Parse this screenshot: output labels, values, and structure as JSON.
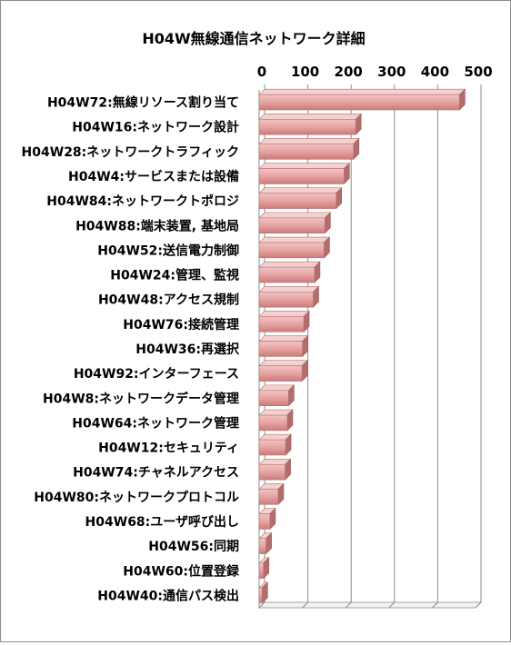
{
  "chart_data": {
    "type": "bar",
    "orientation": "horizontal",
    "title": "H04W無線通信ネットワーク詳細",
    "categories": [
      "H04W72:無線リソース割り当て",
      "H04W16:ネットワーク設計",
      "H04W28:ネットワークトラフィック",
      "H04W4:サービスまたは設備",
      "H04W84:ネットワークトポロジ",
      "H04W88:端末装置, 基地局",
      "H04W52:送信電力制御",
      "H04W24:管理、監視",
      "H04W48:アクセス規制",
      "H04W76:接続管理",
      "H04W36:再選択",
      "H04W92:インターフェース",
      "H04W8:ネットワークデータ管理",
      "H04W64:ネットワーク管理",
      "H04W12:セキュリティ",
      "H04W74:チャネルアクセス",
      "H04W80:ネットワークプロトコル",
      "H04W68:ユーザ呼び出し",
      "H04W56:同期",
      "H04W60:位置登録",
      "H04W40:通信パス検出"
    ],
    "values": [
      463,
      223,
      218,
      196,
      178,
      152,
      150,
      128,
      125,
      103,
      100,
      99,
      68,
      65,
      61,
      60,
      44,
      25,
      16,
      10,
      7
    ],
    "xlim": [
      0,
      500
    ],
    "xticks": [
      "0",
      "100",
      "200",
      "300",
      "400",
      "500"
    ],
    "xaxis_position": "top",
    "grid": "vertical",
    "bar_color": "#d99594",
    "legend": "none"
  }
}
